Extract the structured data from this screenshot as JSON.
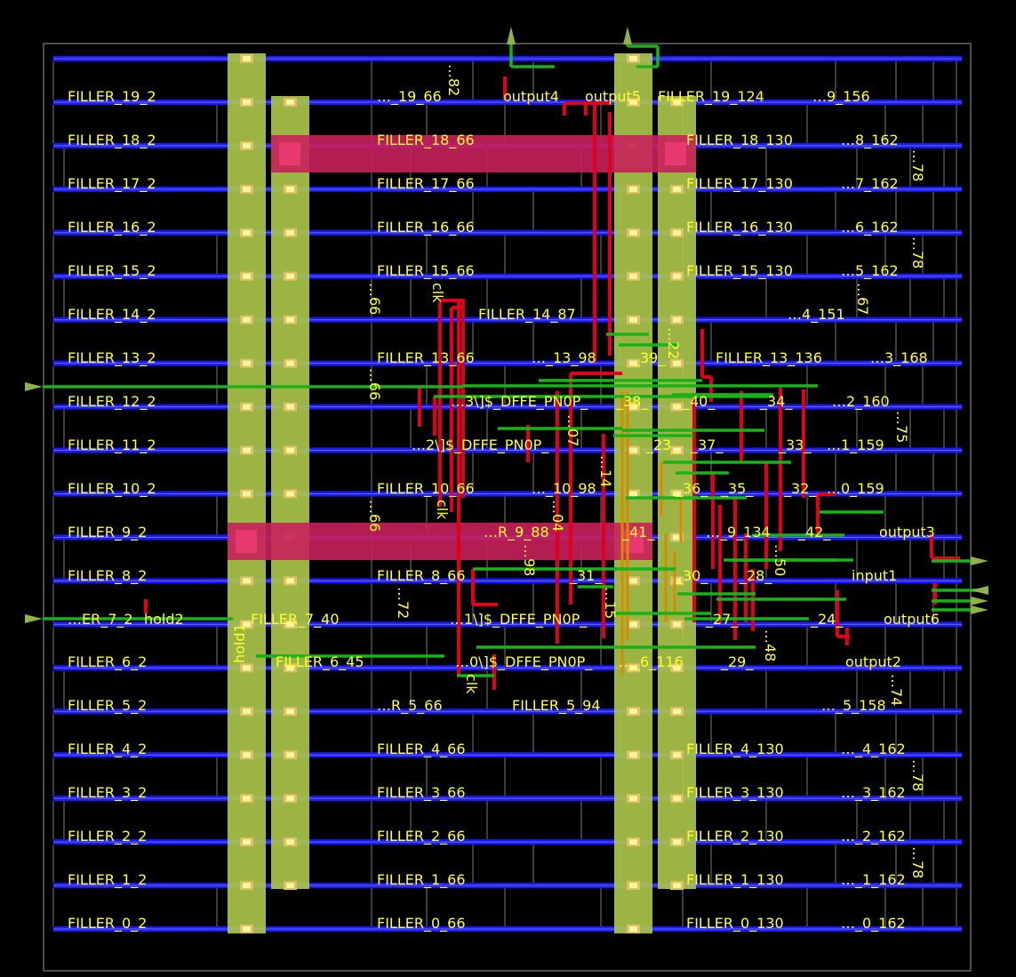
{
  "colors": {
    "background": "#000000",
    "die_outline": "#9a9a9a",
    "power_rail": "#1a1aff",
    "power_stripe": "#a9c34a",
    "label": "#ffff33",
    "route_red": "#e0001c",
    "route_green": "#19b219",
    "route_orange": "#d88a00",
    "blockage_pink": "#c8205a",
    "pin_arrow": "#8fb24a",
    "cell_boundary": "#bdbdbd"
  },
  "rows": [
    {
      "row": 19,
      "labels": [
        "FILLER_19_2",
        "…_19_66",
        "output4",
        "output5",
        "FILLER_19_124",
        "…9_156"
      ]
    },
    {
      "row": 18,
      "labels": [
        "FILLER_18_2",
        "FILLER_18_66",
        "FILLER_18_130",
        "…8_162"
      ]
    },
    {
      "row": 17,
      "labels": [
        "FILLER_17_2",
        "FILLER_17_66",
        "FILLER_17_130",
        "…7_162"
      ]
    },
    {
      "row": 16,
      "labels": [
        "FILLER_16_2",
        "FILLER_16_66",
        "FILLER_16_130",
        "…6_162"
      ]
    },
    {
      "row": 15,
      "labels": [
        "FILLER_15_2",
        "FILLER_15_66",
        "FILLER_15_130",
        "…5_162"
      ]
    },
    {
      "row": 14,
      "labels": [
        "FILLER_14_2",
        "FILLER_14_87",
        "…4_151"
      ]
    },
    {
      "row": 13,
      "labels": [
        "FILLER_13_2",
        "FILLER_13_66",
        "…_13_98",
        "_39_",
        "FILLER_13_136",
        "…3_168"
      ]
    },
    {
      "row": 12,
      "labels": [
        "FILLER_12_2",
        "…3\\]$_DFFE_PN0P_",
        "_38_",
        "_40_",
        "_34_",
        "…2_160"
      ]
    },
    {
      "row": 11,
      "labels": [
        "FILLER_11_2",
        "…2\\]$_DFFE_PN0P_",
        "_23_",
        "_37_",
        "_33_",
        "…1_159"
      ]
    },
    {
      "row": 10,
      "labels": [
        "FILLER_10_2",
        "FILLER_10_66",
        "…_10_98",
        "_36_",
        "_35_",
        "_32_",
        "…0_159"
      ]
    },
    {
      "row": 9,
      "labels": [
        "FILLER_9_2",
        "…R_9_88",
        "_41_",
        "…_9_134",
        "_42_",
        "output3"
      ]
    },
    {
      "row": 8,
      "labels": [
        "FILLER_8_2",
        "FILLER_8_66",
        "_31_",
        "_30_",
        "_28_",
        "input1"
      ]
    },
    {
      "row": 7,
      "labels": [
        "…ER_7_2",
        "hold2",
        "FILLER_7_40",
        "…1\\]$_DFFE_PN0P_",
        "_27_",
        "_24_",
        "output6"
      ]
    },
    {
      "row": 6,
      "labels": [
        "FILLER_6_2",
        "FILLER_6_45",
        "…0\\]$_DFFE_PN0P_",
        "…_6_116",
        "_29_",
        "output2"
      ]
    },
    {
      "row": 5,
      "labels": [
        "FILLER_5_2",
        "…R_5_66",
        "FILLER_5_94",
        "…_5_158"
      ]
    },
    {
      "row": 4,
      "labels": [
        "FILLER_4_2",
        "FILLER_4_66",
        "FILLER_4_130",
        "…_4_162"
      ]
    },
    {
      "row": 3,
      "labels": [
        "FILLER_3_2",
        "FILLER_3_66",
        "FILLER_3_130",
        "…_3_162"
      ]
    },
    {
      "row": 2,
      "labels": [
        "FILLER_2_2",
        "FILLER_2_66",
        "FILLER_2_130",
        "…_2_162"
      ]
    },
    {
      "row": 1,
      "labels": [
        "FILLER_1_2",
        "FILLER_1_66",
        "FILLER_1_130",
        "…_1_162"
      ]
    },
    {
      "row": 0,
      "labels": [
        "FILLER_0_2",
        "FILLER_0_66",
        "FILLER_0_130",
        "…_0_162"
      ]
    }
  ],
  "rotated_labels": [
    "…82",
    "…78",
    "…78",
    "…67",
    "…66",
    "clk",
    "…22",
    "…66",
    "…07",
    "…75",
    "…14",
    "…66",
    "clk",
    "…04",
    "…98",
    "…50",
    "…72",
    "…15",
    "hold1",
    "…48",
    "clk",
    "…74",
    "…78",
    "…78"
  ]
}
